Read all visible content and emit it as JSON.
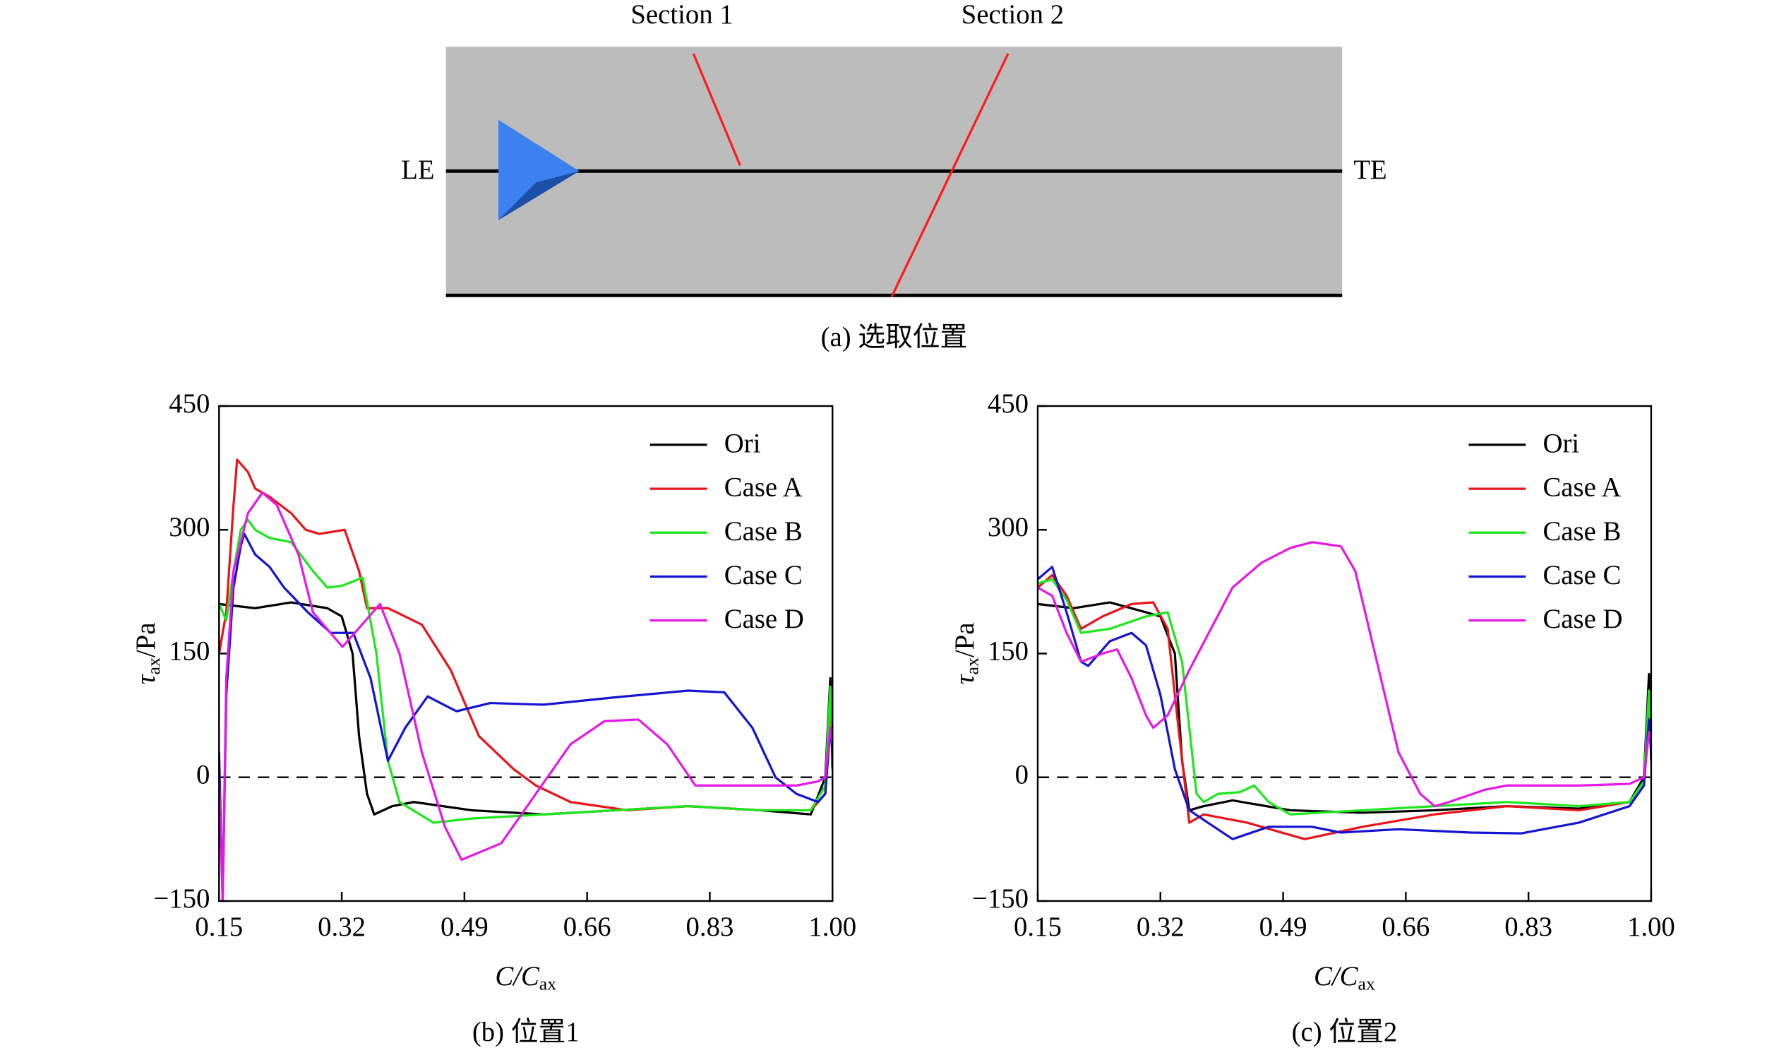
{
  "diagram": {
    "section_1": "Section 1",
    "section_2": "Section 2",
    "leading_edge": "LE",
    "trailing_edge": "TE",
    "caption": "(a) 选取位置"
  },
  "chart_data": [
    {
      "type": "line",
      "caption": "(b) 位置1",
      "xlabel": {
        "main": "C/C",
        "sub": "ax"
      },
      "ylabel": {
        "main": "τ",
        "sub": "ax",
        "unit": "/Pa"
      },
      "xlim": [
        0.15,
        1
      ],
      "ylim": [
        -150,
        450
      ],
      "xticks": [
        0.15,
        0.32,
        0.49,
        0.66,
        0.83,
        {
          "value": 1,
          "label": "1.00"
        }
      ],
      "yticks": [
        {
          "value": -150,
          "label": "−150"
        },
        0,
        150,
        300,
        450
      ],
      "hline": 0,
      "legend": "upper right",
      "grid": false,
      "series": [
        {
          "name": "Ori",
          "color": "#000000",
          "x": [
            0.15,
            0.2,
            0.25,
            0.3,
            0.32,
            0.335,
            0.344,
            0.355,
            0.365,
            0.39,
            0.42,
            0.5,
            0.6,
            0.7,
            0.8,
            0.9,
            0.97,
            0.99,
            0.997,
            1
          ],
          "values": [
            210,
            205,
            212,
            205,
            195,
            150,
            50,
            -20,
            -45,
            -35,
            -30,
            -40,
            -45,
            -40,
            -35,
            -40,
            -45,
            0,
            120,
            10
          ]
        },
        {
          "name": "Case A",
          "color": "#e8141a",
          "x": [
            0.15,
            0.16,
            0.17,
            0.175,
            0.19,
            0.2,
            0.22,
            0.25,
            0.27,
            0.289,
            0.324,
            0.344,
            0.355,
            0.384,
            0.431,
            0.471,
            0.51,
            0.558,
            0.589,
            0.637,
            0.716,
            0.8,
            0.9,
            0.97,
            0.99,
            0.997,
            1
          ],
          "values": [
            150,
            200,
            330,
            385,
            370,
            350,
            340,
            320,
            300,
            295,
            300,
            250,
            205,
            205,
            185,
            130,
            50,
            10,
            -10,
            -30,
            -40,
            -35,
            -40,
            -40,
            -20,
            100,
            20
          ]
        },
        {
          "name": "Case B",
          "color": "#1ee61e",
          "x": [
            0.15,
            0.16,
            0.17,
            0.18,
            0.19,
            0.2,
            0.22,
            0.25,
            0.28,
            0.3,
            0.32,
            0.349,
            0.368,
            0.384,
            0.4,
            0.447,
            0.5,
            0.6,
            0.7,
            0.8,
            0.9,
            0.97,
            0.99,
            0.997,
            1
          ],
          "values": [
            210,
            190,
            250,
            300,
            312,
            300,
            290,
            285,
            250,
            230,
            232,
            242,
            150,
            20,
            -30,
            -55,
            -50,
            -45,
            -40,
            -35,
            -40,
            -40,
            -10,
            110,
            30
          ]
        },
        {
          "name": "Case C",
          "color": "#1414d2",
          "x": [
            0.15,
            0.155,
            0.16,
            0.17,
            0.18,
            0.185,
            0.2,
            0.22,
            0.24,
            0.273,
            0.305,
            0.336,
            0.36,
            0.384,
            0.408,
            0.439,
            0.479,
            0.526,
            0.6,
            0.7,
            0.8,
            0.85,
            0.889,
            0.921,
            0.95,
            0.98,
            0.99,
            0.997,
            1
          ],
          "values": [
            30,
            -150,
            100,
            230,
            280,
            295,
            270,
            255,
            230,
            200,
            175,
            175,
            120,
            20,
            60,
            98,
            80,
            90,
            88,
            97,
            105,
            103,
            60,
            0,
            -20,
            -30,
            -20,
            60,
            30
          ]
        },
        {
          "name": "Case D",
          "color": "#e619e6",
          "x": [
            0.15,
            0.155,
            0.16,
            0.17,
            0.19,
            0.21,
            0.23,
            0.26,
            0.28,
            0.321,
            0.373,
            0.4,
            0.431,
            0.463,
            0.486,
            0.541,
            0.589,
            0.637,
            0.684,
            0.731,
            0.771,
            0.81,
            0.85,
            0.9,
            0.95,
            0.98,
            0.99,
            0.997,
            1
          ],
          "values": [
            0,
            -150,
            120,
            250,
            320,
            345,
            330,
            270,
            200,
            158,
            210,
            150,
            30,
            -60,
            -100,
            -80,
            -20,
            40,
            68,
            70,
            40,
            -10,
            -10,
            -10,
            -10,
            -5,
            0,
            60,
            40
          ]
        }
      ]
    },
    {
      "type": "line",
      "caption": "(c) 位置2",
      "xlabel": {
        "main": "C/C",
        "sub": "ax"
      },
      "ylabel": {
        "main": "τ",
        "sub": "ax",
        "unit": "/Pa"
      },
      "xlim": [
        0.15,
        1
      ],
      "ylim": [
        -150,
        450
      ],
      "xticks": [
        0.15,
        0.32,
        0.49,
        0.66,
        0.83,
        {
          "value": 1,
          "label": "1.00"
        }
      ],
      "yticks": [
        {
          "value": -150,
          "label": "−150"
        },
        0,
        150,
        300,
        450
      ],
      "hline": 0,
      "legend": "upper right",
      "grid": false,
      "series": [
        {
          "name": "Ori",
          "color": "#000000",
          "x": [
            0.15,
            0.2,
            0.25,
            0.3,
            0.32,
            0.34,
            0.35,
            0.36,
            0.38,
            0.42,
            0.5,
            0.6,
            0.7,
            0.8,
            0.9,
            0.97,
            0.99,
            0.997,
            1
          ],
          "values": [
            210,
            205,
            212,
            200,
            195,
            150,
            20,
            -40,
            -35,
            -28,
            -40,
            -43,
            -40,
            -35,
            -38,
            -30,
            0,
            125,
            20
          ]
        },
        {
          "name": "Case A",
          "color": "#e8141a",
          "x": [
            0.15,
            0.17,
            0.19,
            0.21,
            0.24,
            0.28,
            0.31,
            0.33,
            0.345,
            0.36,
            0.38,
            0.44,
            0.52,
            0.6,
            0.7,
            0.8,
            0.9,
            0.97,
            0.99,
            0.997,
            1
          ],
          "values": [
            230,
            245,
            220,
            180,
            195,
            210,
            212,
            180,
            60,
            -55,
            -45,
            -55,
            -75,
            -60,
            -45,
            -35,
            -40,
            -30,
            -5,
            80,
            30
          ]
        },
        {
          "name": "Case B",
          "color": "#1ee61e",
          "x": [
            0.15,
            0.17,
            0.19,
            0.21,
            0.25,
            0.3,
            0.33,
            0.35,
            0.37,
            0.38,
            0.4,
            0.43,
            0.45,
            0.47,
            0.5,
            0.6,
            0.7,
            0.8,
            0.9,
            0.97,
            0.99,
            0.997,
            1
          ],
          "values": [
            235,
            240,
            215,
            175,
            180,
            195,
            200,
            140,
            -20,
            -30,
            -20,
            -18,
            -10,
            -30,
            -45,
            -40,
            -35,
            -30,
            -35,
            -30,
            -5,
            105,
            40
          ]
        },
        {
          "name": "Case C",
          "color": "#1414d2",
          "x": [
            0.15,
            0.17,
            0.19,
            0.21,
            0.22,
            0.25,
            0.28,
            0.3,
            0.32,
            0.34,
            0.36,
            0.42,
            0.47,
            0.53,
            0.57,
            0.65,
            0.75,
            0.82,
            0.9,
            0.97,
            0.99,
            0.997,
            1
          ],
          "values": [
            240,
            255,
            200,
            140,
            135,
            165,
            175,
            160,
            100,
            10,
            -40,
            -75,
            -60,
            -60,
            -67,
            -63,
            -67,
            -68,
            -55,
            -35,
            -10,
            70,
            30
          ]
        },
        {
          "name": "Case D",
          "color": "#e619e6",
          "x": [
            0.15,
            0.17,
            0.19,
            0.21,
            0.24,
            0.26,
            0.28,
            0.3,
            0.31,
            0.33,
            0.36,
            0.39,
            0.42,
            0.46,
            0.5,
            0.53,
            0.57,
            0.59,
            0.62,
            0.65,
            0.68,
            0.7,
            0.72,
            0.77,
            0.8,
            0.9,
            0.97,
            0.99,
            0.997,
            1
          ],
          "values": [
            230,
            220,
            175,
            140,
            150,
            155,
            120,
            75,
            60,
            75,
            130,
            180,
            230,
            260,
            278,
            285,
            280,
            250,
            140,
            30,
            -20,
            -35,
            -30,
            -15,
            -10,
            -10,
            -8,
            0,
            55,
            45
          ]
        }
      ]
    }
  ]
}
